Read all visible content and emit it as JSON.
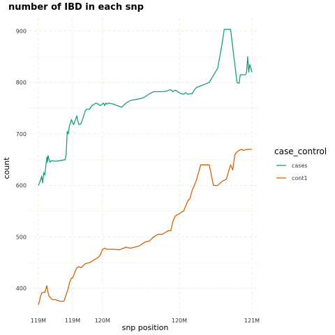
{
  "chart_data": {
    "type": "line",
    "title": "number of IBD in each snp",
    "xlabel": "snp position",
    "ylabel": "count",
    "x_tick_labels": [
      "119M",
      "119M",
      "120M",
      "120M",
      "121M"
    ],
    "y_ticks": [
      400,
      500,
      600,
      700,
      800,
      900
    ],
    "y_tick_labels": [
      "400",
      "500",
      "600",
      "700",
      "800",
      "900"
    ],
    "xlim": [
      0,
      1
    ],
    "ylim": [
      350,
      925
    ],
    "legend_title": "case_control",
    "legend_position": "right",
    "grid": true,
    "series": [
      {
        "name": "cases",
        "color": "#1b9e77",
        "x": [
          0.0,
          0.01,
          0.015,
          0.02,
          0.025,
          0.03,
          0.04,
          0.042,
          0.045,
          0.05,
          0.055,
          0.06,
          0.08,
          0.1,
          0.125,
          0.13,
          0.135,
          0.14,
          0.145,
          0.155,
          0.16,
          0.165,
          0.18,
          0.185,
          0.19,
          0.2,
          0.22,
          0.225,
          0.24,
          0.25,
          0.27,
          0.28,
          0.29,
          0.305,
          0.31,
          0.315,
          0.32,
          0.325,
          0.33,
          0.35,
          0.37,
          0.39,
          0.41,
          0.43,
          0.47,
          0.49,
          0.51,
          0.52,
          0.53,
          0.54,
          0.56,
          0.58,
          0.6,
          0.61,
          0.62,
          0.63,
          0.64,
          0.65,
          0.66,
          0.67,
          0.675,
          0.68,
          0.69,
          0.7,
          0.71,
          0.72,
          0.73,
          0.74,
          0.8,
          0.84,
          0.86,
          0.87,
          0.88,
          0.9,
          0.93,
          0.94,
          0.945,
          0.95,
          0.97,
          0.975,
          0.98,
          0.985,
          0.99,
          1.0
        ],
        "y": [
          600,
          610,
          618,
          605,
          625,
          620,
          655,
          645,
          658,
          650,
          645,
          648,
          647,
          648,
          650,
          660,
          705,
          700,
          715,
          728,
          722,
          718,
          735,
          725,
          718,
          720,
          745,
          748,
          748,
          755,
          760,
          758,
          755,
          760,
          755,
          760,
          758,
          759,
          760,
          758,
          755,
          752,
          760,
          765,
          768,
          770,
          775,
          778,
          780,
          782,
          782,
          782,
          783,
          785,
          786,
          782,
          785,
          783,
          780,
          778,
          778,
          777,
          780,
          777,
          778,
          778,
          785,
          790,
          800,
          828,
          875,
          903,
          903,
          903,
          800,
          798,
          815,
          815,
          815,
          820,
          850,
          820,
          835,
          820
        ]
      },
      {
        "name": "cont1",
        "color": "#d95f02",
        "x": [
          0.0,
          0.005,
          0.01,
          0.015,
          0.02,
          0.03,
          0.04,
          0.045,
          0.05,
          0.06,
          0.07,
          0.08,
          0.1,
          0.12,
          0.14,
          0.145,
          0.15,
          0.155,
          0.16,
          0.17,
          0.18,
          0.19,
          0.2,
          0.22,
          0.24,
          0.28,
          0.29,
          0.3,
          0.31,
          0.32,
          0.33,
          0.35,
          0.38,
          0.4,
          0.41,
          0.43,
          0.47,
          0.5,
          0.52,
          0.54,
          0.56,
          0.58,
          0.6,
          0.61,
          0.62,
          0.63,
          0.64,
          0.65,
          0.66,
          0.67,
          0.68,
          0.69,
          0.7,
          0.71,
          0.72,
          0.73,
          0.74,
          0.75,
          0.76,
          0.78,
          0.8,
          0.82,
          0.84,
          0.86,
          0.88,
          0.9,
          0.91,
          0.92,
          0.93,
          0.94,
          0.95,
          0.96,
          0.97,
          0.98,
          0.99,
          1.0
        ],
        "y": [
          368,
          375,
          385,
          390,
          392,
          392,
          405,
          392,
          385,
          380,
          378,
          378,
          375,
          375,
          400,
          410,
          415,
          420,
          420,
          430,
          440,
          442,
          440,
          448,
          450,
          460,
          465,
          475,
          478,
          476,
          476,
          476,
          475,
          478,
          480,
          478,
          482,
          490,
          492,
          500,
          505,
          505,
          510,
          512,
          512,
          530,
          540,
          543,
          545,
          548,
          550,
          560,
          570,
          575,
          590,
          600,
          610,
          625,
          640,
          640,
          640,
          600,
          600,
          608,
          612,
          640,
          630,
          660,
          665,
          668,
          670,
          668,
          669,
          670,
          670,
          670
        ]
      }
    ]
  }
}
